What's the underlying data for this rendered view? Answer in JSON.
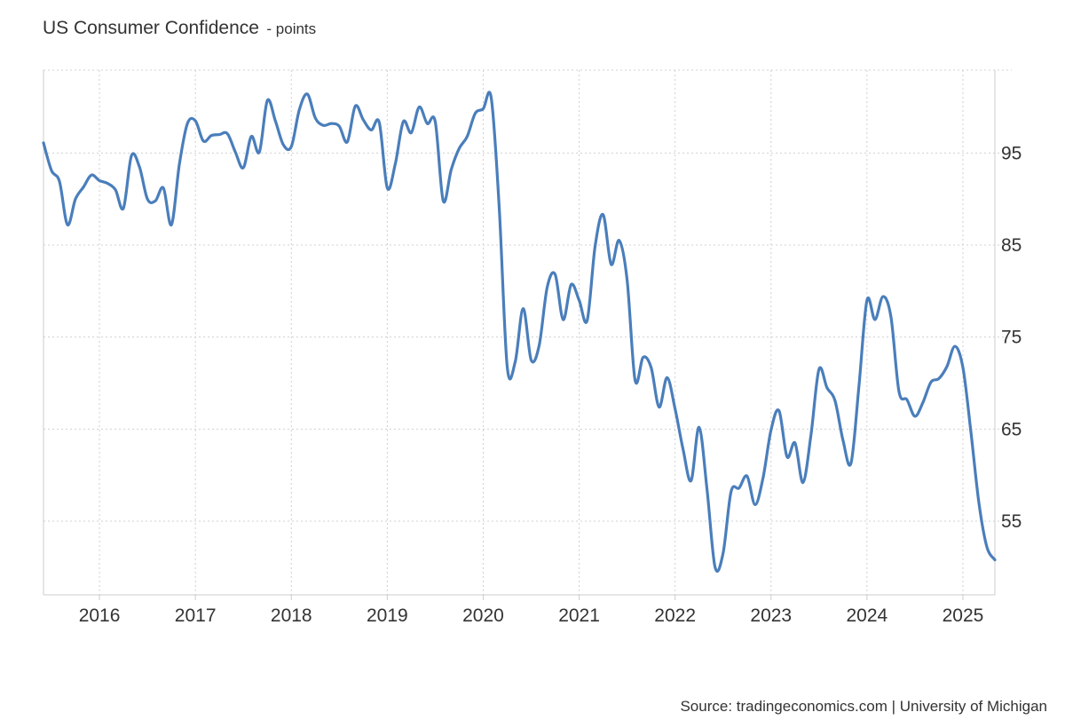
{
  "chart_data": {
    "type": "line",
    "title": "US Consumer Confidence",
    "subtitle": "- points",
    "source": "Source: tradingeconomics.com | University of Michigan",
    "x_tick_labels": [
      "2016",
      "2017",
      "2018",
      "2019",
      "2020",
      "2021",
      "2022",
      "2023",
      "2024",
      "2025"
    ],
    "y_tick_labels": [
      "95",
      "85",
      "75",
      "65",
      "55"
    ],
    "xlim": [
      "2015-06",
      "2025-05"
    ],
    "ylim": [
      47,
      104
    ],
    "grid": true,
    "line_color": "#4a7ebb",
    "series": [
      {
        "x": [
          "2015-06",
          "2015-07",
          "2015-08",
          "2015-09",
          "2015-10",
          "2015-11",
          "2015-12",
          "2016-01",
          "2016-02",
          "2016-03",
          "2016-04",
          "2016-05",
          "2016-06",
          "2016-07",
          "2016-08",
          "2016-09",
          "2016-10",
          "2016-11",
          "2016-12",
          "2017-01",
          "2017-02",
          "2017-03",
          "2017-04",
          "2017-05",
          "2017-06",
          "2017-07",
          "2017-08",
          "2017-09",
          "2017-10",
          "2017-11",
          "2017-12",
          "2018-01",
          "2018-02",
          "2018-03",
          "2018-04",
          "2018-05",
          "2018-06",
          "2018-07",
          "2018-08",
          "2018-09",
          "2018-10",
          "2018-11",
          "2018-12",
          "2019-01",
          "2019-02",
          "2019-03",
          "2019-04",
          "2019-05",
          "2019-06",
          "2019-07",
          "2019-08",
          "2019-09",
          "2019-10",
          "2019-11",
          "2019-12",
          "2020-01",
          "2020-02",
          "2020-03",
          "2020-04",
          "2020-05",
          "2020-06",
          "2020-07",
          "2020-08",
          "2020-09",
          "2020-10",
          "2020-11",
          "2020-12",
          "2021-01",
          "2021-02",
          "2021-03",
          "2021-04",
          "2021-05",
          "2021-06",
          "2021-07",
          "2021-08",
          "2021-09",
          "2021-10",
          "2021-11",
          "2021-12",
          "2022-01",
          "2022-02",
          "2022-03",
          "2022-04",
          "2022-05",
          "2022-06",
          "2022-07",
          "2022-08",
          "2022-09",
          "2022-10",
          "2022-11",
          "2022-12",
          "2023-01",
          "2023-02",
          "2023-03",
          "2023-04",
          "2023-05",
          "2023-06",
          "2023-07",
          "2023-08",
          "2023-09",
          "2023-10",
          "2023-11",
          "2023-12",
          "2024-01",
          "2024-02",
          "2024-03",
          "2024-04",
          "2024-05",
          "2024-06",
          "2024-07",
          "2024-08",
          "2024-09",
          "2024-10",
          "2024-11",
          "2024-12",
          "2025-01",
          "2025-02",
          "2025-03",
          "2025-04",
          "2025-05"
        ],
        "values": [
          96.1,
          93.1,
          91.9,
          87.2,
          90.0,
          91.3,
          92.6,
          92.0,
          91.7,
          91.0,
          89.0,
          94.7,
          93.5,
          90.0,
          89.8,
          91.2,
          87.2,
          93.8,
          98.2,
          98.5,
          96.3,
          96.9,
          97.0,
          97.1,
          95.1,
          93.4,
          96.8,
          95.1,
          100.7,
          98.5,
          95.9,
          95.7,
          99.7,
          101.4,
          98.8,
          98.0,
          98.2,
          97.9,
          96.2,
          100.1,
          98.6,
          97.5,
          98.3,
          91.2,
          93.8,
          98.4,
          97.2,
          100.0,
          98.2,
          98.4,
          89.8,
          93.2,
          95.5,
          96.8,
          99.3,
          99.8,
          101.0,
          89.1,
          71.8,
          72.3,
          78.1,
          72.5,
          74.1,
          80.4,
          81.8,
          76.9,
          80.7,
          79.0,
          76.8,
          84.9,
          88.3,
          82.9,
          85.5,
          81.2,
          70.3,
          72.8,
          71.7,
          67.4,
          70.6,
          67.2,
          62.8,
          59.4,
          65.2,
          58.4,
          50.0,
          51.5,
          58.2,
          58.6,
          59.9,
          56.8,
          59.7,
          64.9,
          67.0,
          62.0,
          63.5,
          59.2,
          64.4,
          71.5,
          69.5,
          68.1,
          63.8,
          61.3,
          69.7,
          79.0,
          76.9,
          79.4,
          77.2,
          69.1,
          68.2,
          66.4,
          67.9,
          70.1,
          70.5,
          71.8,
          74.0,
          71.7,
          64.7,
          57.0,
          52.2,
          50.8
        ]
      }
    ]
  }
}
